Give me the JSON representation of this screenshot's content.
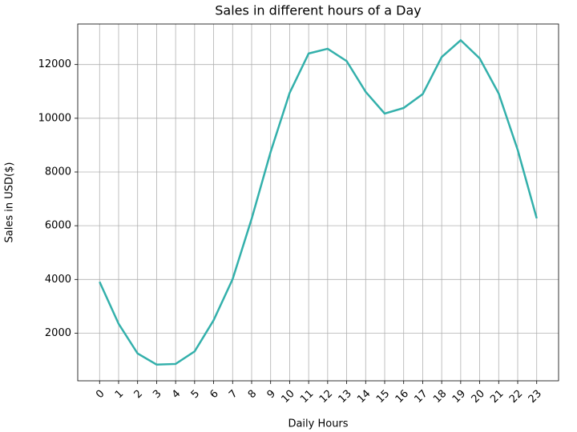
{
  "chart_data": {
    "type": "line",
    "title": "Sales in different hours of a Day",
    "x_label": "Daily Hours",
    "y_label": "Sales in USD($)",
    "x": [
      0,
      1,
      2,
      3,
      4,
      5,
      6,
      7,
      8,
      9,
      10,
      11,
      12,
      13,
      14,
      15,
      16,
      17,
      18,
      19,
      20,
      21,
      22,
      23
    ],
    "series": [
      {
        "name": "Sales",
        "color": "#33b0ab",
        "values": [
          3910,
          2350,
          1243,
          831,
          854,
          1321,
          2482,
          4011,
          6256,
          8748,
          10944,
          12411,
          12587,
          12129,
          10984,
          10175,
          10384,
          10899,
          12280,
          12905,
          12228,
          10921,
          8822,
          6275
        ]
      }
    ],
    "xlim": [
      -1.15,
      24.15
    ],
    "xticks": [
      0,
      1,
      2,
      3,
      4,
      5,
      6,
      7,
      8,
      9,
      10,
      11,
      12,
      13,
      14,
      15,
      16,
      17,
      18,
      19,
      20,
      21,
      22,
      23
    ],
    "ylim": [
      227,
      13509
    ],
    "yticks": [
      2000,
      4000,
      6000,
      8000,
      10000,
      12000
    ],
    "grid": true
  }
}
